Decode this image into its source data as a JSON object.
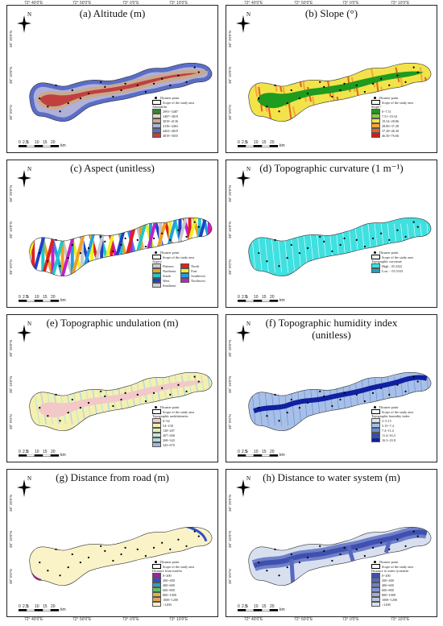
{
  "top_lon": [
    "72° 40′0″E",
    "72° 50′0″E",
    "73° 0′0″E",
    "73° 10′0″E"
  ],
  "lat_labels": [
    "38° 20′0″N",
    "38° 10′0″N",
    "38° 0′0″N"
  ],
  "north": "N",
  "scale": {
    "ticks": [
      "0",
      "2.5",
      "5",
      "10",
      "15",
      "20"
    ],
    "unit": "km"
  },
  "legend_common": {
    "disaster_point": "Disaster point",
    "scope": "Scope of the study area"
  },
  "panels": [
    {
      "title": "(a) Altitude (m)",
      "legend_title": "Altitude/m",
      "items": [
        {
          "label": "2991~3487",
          "color": "#2e8b2e"
        },
        {
          "label": "3487~3819",
          "color": "#e8d4b8"
        },
        {
          "label": "3819~4136",
          "color": "#c9a98c"
        },
        {
          "label": "4136~4463",
          "color": "#b0b0d8"
        },
        {
          "label": "4463~4819",
          "color": "#5a6ec8"
        },
        {
          "label": "4819~5655",
          "color": "#c04040"
        }
      ]
    },
    {
      "title": "(b) Slope (°)",
      "legend_title": "Slope/°",
      "items": [
        {
          "label": "0~7.51",
          "color": "#1f9b1f"
        },
        {
          "label": "7.51~19.54",
          "color": "#8ccc3a"
        },
        {
          "label": "19.54~28.86",
          "color": "#f2e34a"
        },
        {
          "label": "28.86~37.28",
          "color": "#f5a640"
        },
        {
          "label": "37.28~46.30",
          "color": "#e8602a"
        },
        {
          "label": "46.30~76.66",
          "color": "#c81e1e"
        }
      ]
    },
    {
      "title": "(c) Aspect (unitless)",
      "legend_title": "Aspect",
      "items": [
        {
          "label": "Flatness",
          "color": "#c8c8c8"
        },
        {
          "label": "North",
          "color": "#e02020"
        },
        {
          "label": "Northeast",
          "color": "#f0a020"
        },
        {
          "label": "East",
          "color": "#f0f020"
        },
        {
          "label": "South",
          "color": "#20c8c8"
        },
        {
          "label": "Southwest",
          "color": "#20a0e0"
        },
        {
          "label": "West",
          "color": "#2040c8"
        },
        {
          "label": "Northwest",
          "color": "#c020c8"
        }
      ],
      "extra": "Southeast"
    },
    {
      "title": "(d) Topographic curvature (1 m⁻¹)",
      "legend_title": "Topographic curvature",
      "items": [
        {
          "label": "High : 45.2222",
          "color": "#40e0e0"
        },
        {
          "label": "Low : -53.3333",
          "color": "#20a0c0"
        }
      ]
    },
    {
      "title": "(e) Topographic undulation (m)",
      "legend_title": "Topographic undulation/m",
      "items": [
        {
          "label": "0~54",
          "color": "#f2c8c8"
        },
        {
          "label": "54~138",
          "color": "#f5f0b0"
        },
        {
          "label": "138~207",
          "color": "#e0f0b0"
        },
        {
          "label": "207~268",
          "color": "#c8e8d0"
        },
        {
          "label": "268~343",
          "color": "#b0d8e8"
        },
        {
          "label": "343~670",
          "color": "#a0b8e0"
        }
      ]
    },
    {
      "title": "(f) Topographic humidity index",
      "title2": "(unitless)",
      "legend_title": "Topographic humidity index",
      "items": [
        {
          "label": "2~5.15",
          "color": "#d8e4f5"
        },
        {
          "label": "5.15~7.4",
          "color": "#a8c0e8"
        },
        {
          "label": "7.4~11.4",
          "color": "#6890d8"
        },
        {
          "label": "11.4~16.3",
          "color": "#3050b0"
        },
        {
          "label": "16.3~23.8",
          "color": "#1020a0"
        }
      ]
    },
    {
      "title": "(g) Distance from road (m)",
      "legend_title": "Distance from road/m",
      "items": [
        {
          "label": "0~200",
          "color": "#a020a0"
        },
        {
          "label": "200~400",
          "color": "#3050c8"
        },
        {
          "label": "400~600",
          "color": "#30a0c0"
        },
        {
          "label": "600~800",
          "color": "#60c060"
        },
        {
          "label": "800~1000",
          "color": "#d0c030"
        },
        {
          "label": "1000~1200",
          "color": "#e8a060"
        },
        {
          "label": ">1200",
          "color": "#fbf3c8"
        }
      ]
    },
    {
      "title": "(h) Distance to water system (m)",
      "legend_title": "Distance to water system/m",
      "items": [
        {
          "label": "0~200",
          "color": "#4050b0"
        },
        {
          "label": "200~400",
          "color": "#5868c0"
        },
        {
          "label": "400~600",
          "color": "#7080c8"
        },
        {
          "label": "600~800",
          "color": "#8898d0"
        },
        {
          "label": "800~1000",
          "color": "#a0b0d8"
        },
        {
          "label": "1000~1200",
          "color": "#b8c8e0"
        },
        {
          "label": ">1200",
          "color": "#d8e0f0"
        }
      ]
    }
  ]
}
